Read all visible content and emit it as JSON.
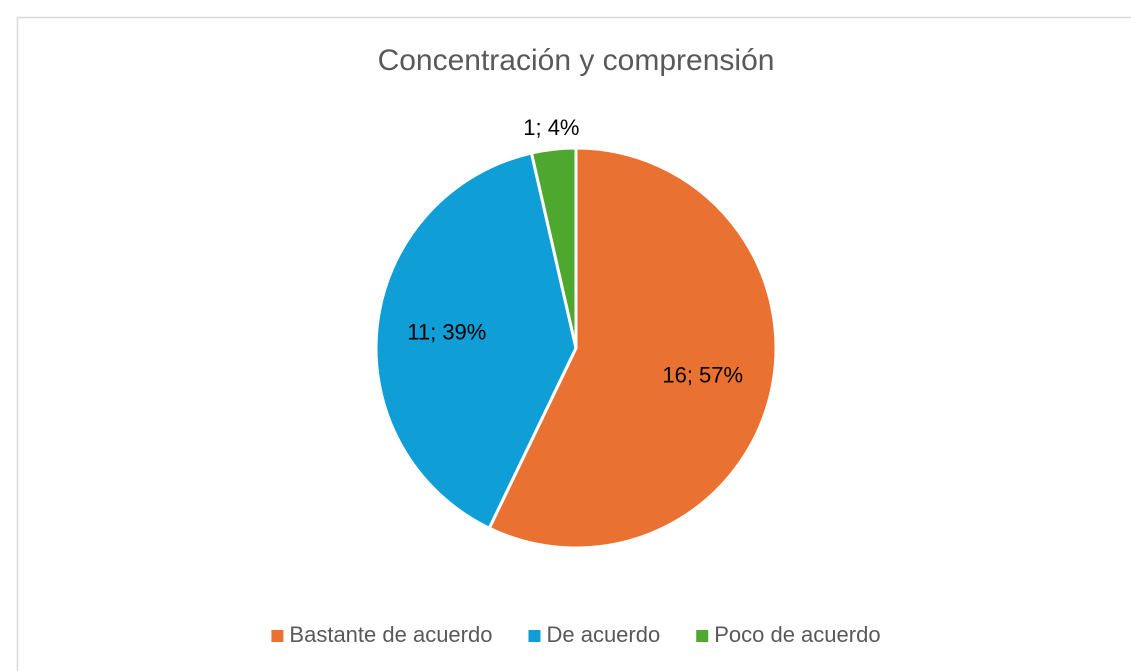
{
  "chart_data": {
    "type": "pie",
    "title": "Concentración y comprensión",
    "categories": [
      "Bastante de acuerdo",
      "De acuerdo",
      "Poco de acuerdo"
    ],
    "values": [
      16,
      11,
      1
    ],
    "value_labels": [
      "16; 57%",
      "11; 39%",
      "1; 4%"
    ],
    "colors": [
      "#E97132",
      "#0F9ED5",
      "#4EA72E"
    ],
    "legend": "bottom"
  }
}
